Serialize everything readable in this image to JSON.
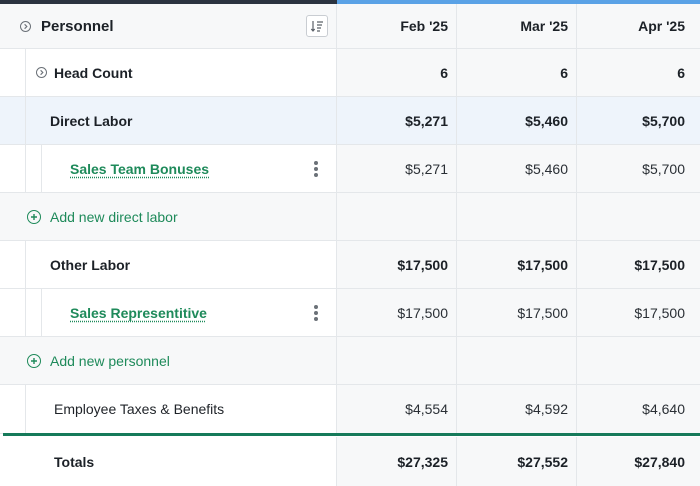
{
  "section": {
    "title": "Personnel"
  },
  "months": [
    "Feb '25",
    "Mar '25",
    "Apr '25"
  ],
  "rows": {
    "head_count": {
      "label": "Head Count",
      "values": [
        "6",
        "6",
        "6"
      ]
    },
    "direct_labor": {
      "label": "Direct Labor",
      "values": [
        "$5,271",
        "$5,460",
        "$5,700"
      ]
    },
    "sales_team_bonuses": {
      "label": "Sales Team Bonuses",
      "values": [
        "$5,271",
        "$5,460",
        "$5,700"
      ]
    },
    "add_direct_labor": {
      "label": "Add new direct labor"
    },
    "other_labor": {
      "label": "Other Labor",
      "values": [
        "$17,500",
        "$17,500",
        "$17,500"
      ]
    },
    "sales_representitive": {
      "label": "Sales Representitive",
      "values": [
        "$17,500",
        "$17,500",
        "$17,500"
      ]
    },
    "add_personnel": {
      "label": "Add new personnel"
    },
    "employee_taxes": {
      "label": "Employee Taxes & Benefits",
      "values": [
        "$4,554",
        "$4,592",
        "$4,640"
      ]
    },
    "totals": {
      "label": "Totals",
      "values": [
        "$27,325",
        "$27,552",
        "$27,840"
      ]
    }
  },
  "colors": {
    "accent_green": "#1e8a5a",
    "top_bar_dark": "#2b3340",
    "top_bar_blue": "#5aa2e6",
    "totals_line": "#167a5a"
  },
  "icons": {
    "collapse": "chevron-circle-icon",
    "sort": "sort-list-icon",
    "add": "plus-circle-icon",
    "more": "vertical-dots-icon"
  }
}
